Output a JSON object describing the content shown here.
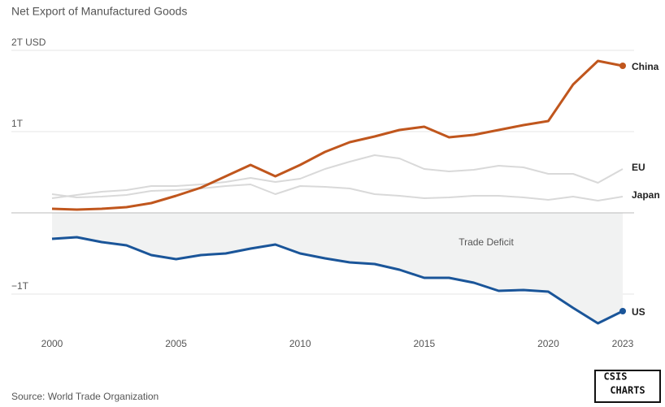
{
  "chart_data": {
    "type": "line",
    "title": "Net Export of Manufactured Goods",
    "source": "Source: World Trade Organization",
    "logo": [
      "CSIS",
      "CHARTS"
    ],
    "annotation": "Trade Deficit",
    "x": [
      2000,
      2001,
      2002,
      2003,
      2004,
      2005,
      2006,
      2007,
      2008,
      2009,
      2010,
      2011,
      2012,
      2013,
      2014,
      2015,
      2016,
      2017,
      2018,
      2019,
      2020,
      2021,
      2022,
      2023
    ],
    "xlim": [
      2000,
      2023
    ],
    "xticks": [
      2000,
      2005,
      2010,
      2015,
      2020,
      2023
    ],
    "ylim": [
      -1.45,
      2.05
    ],
    "yticks": [
      {
        "value": -1,
        "label": "−1T"
      },
      {
        "value": 1,
        "label": "1T"
      },
      {
        "value": 2,
        "label": "2T USD"
      }
    ],
    "grid": true,
    "series": [
      {
        "name": "EU",
        "color": "#d9d9d9",
        "values": [
          0.18,
          0.22,
          0.26,
          0.28,
          0.33,
          0.33,
          0.35,
          0.38,
          0.43,
          0.38,
          0.42,
          0.54,
          0.63,
          0.71,
          0.67,
          0.54,
          0.51,
          0.53,
          0.58,
          0.56,
          0.48,
          0.48,
          0.37,
          0.54
        ]
      },
      {
        "name": "Japan",
        "color": "#d9d9d9",
        "values": [
          0.23,
          0.19,
          0.2,
          0.22,
          0.27,
          0.28,
          0.3,
          0.33,
          0.35,
          0.23,
          0.33,
          0.32,
          0.3,
          0.23,
          0.21,
          0.18,
          0.19,
          0.21,
          0.21,
          0.19,
          0.16,
          0.2,
          0.15,
          0.2
        ]
      },
      {
        "name": "China",
        "color": "#c0561d",
        "values": [
          0.05,
          0.04,
          0.05,
          0.07,
          0.12,
          0.21,
          0.31,
          0.45,
          0.59,
          0.45,
          0.59,
          0.75,
          0.87,
          0.94,
          1.02,
          1.06,
          0.93,
          0.96,
          1.02,
          1.08,
          1.13,
          1.58,
          1.87,
          1.81
        ]
      },
      {
        "name": "US",
        "color": "#1a5599",
        "values": [
          -0.32,
          -0.3,
          -0.36,
          -0.4,
          -0.52,
          -0.57,
          -0.52,
          -0.5,
          -0.44,
          -0.39,
          -0.5,
          -0.56,
          -0.61,
          -0.63,
          -0.7,
          -0.8,
          -0.8,
          -0.86,
          -0.96,
          -0.95,
          -0.97,
          -1.17,
          -1.36,
          -1.21
        ]
      }
    ]
  }
}
